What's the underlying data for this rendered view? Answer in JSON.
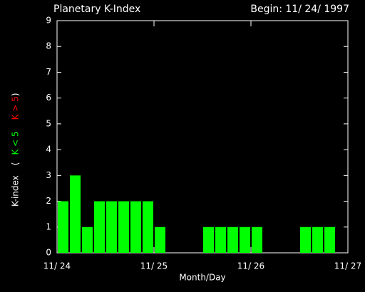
{
  "chart_data": {
    "type": "bar",
    "title": "Planetary K-Index",
    "subtitle": "Begin: 11/ 24/ 1997",
    "x_label": "Month/Day",
    "y_label_parts": [
      "K-index",
      "(",
      "K < 5",
      "K > 5",
      ")"
    ],
    "y_label_colors": [
      "#ffffff",
      "#ffffff",
      "#00ff00",
      "#ff0000",
      "#ffffff"
    ],
    "color": "#00ff00",
    "x": [
      0,
      3,
      6,
      9,
      12,
      15,
      18,
      21,
      24,
      27,
      30,
      33,
      36,
      39,
      42,
      45,
      48,
      51,
      54,
      57,
      60,
      63,
      66,
      69
    ],
    "values": [
      2,
      3,
      1,
      2,
      2,
      2,
      2,
      2,
      1,
      null,
      null,
      null,
      1,
      1,
      1,
      1,
      1,
      null,
      null,
      null,
      1,
      1,
      1,
      null
    ],
    "xlim": [
      0,
      72
    ],
    "xticks": [
      {
        "value": 0,
        "label": "11/ 24"
      },
      {
        "value": 24,
        "label": "11/ 25"
      },
      {
        "value": 48,
        "label": "11/ 26"
      },
      {
        "value": 72,
        "label": "11/ 27"
      }
    ],
    "ylim": [
      0,
      9
    ],
    "yticks": [
      0,
      1,
      2,
      3,
      4,
      5,
      6,
      7,
      8,
      9
    ]
  }
}
